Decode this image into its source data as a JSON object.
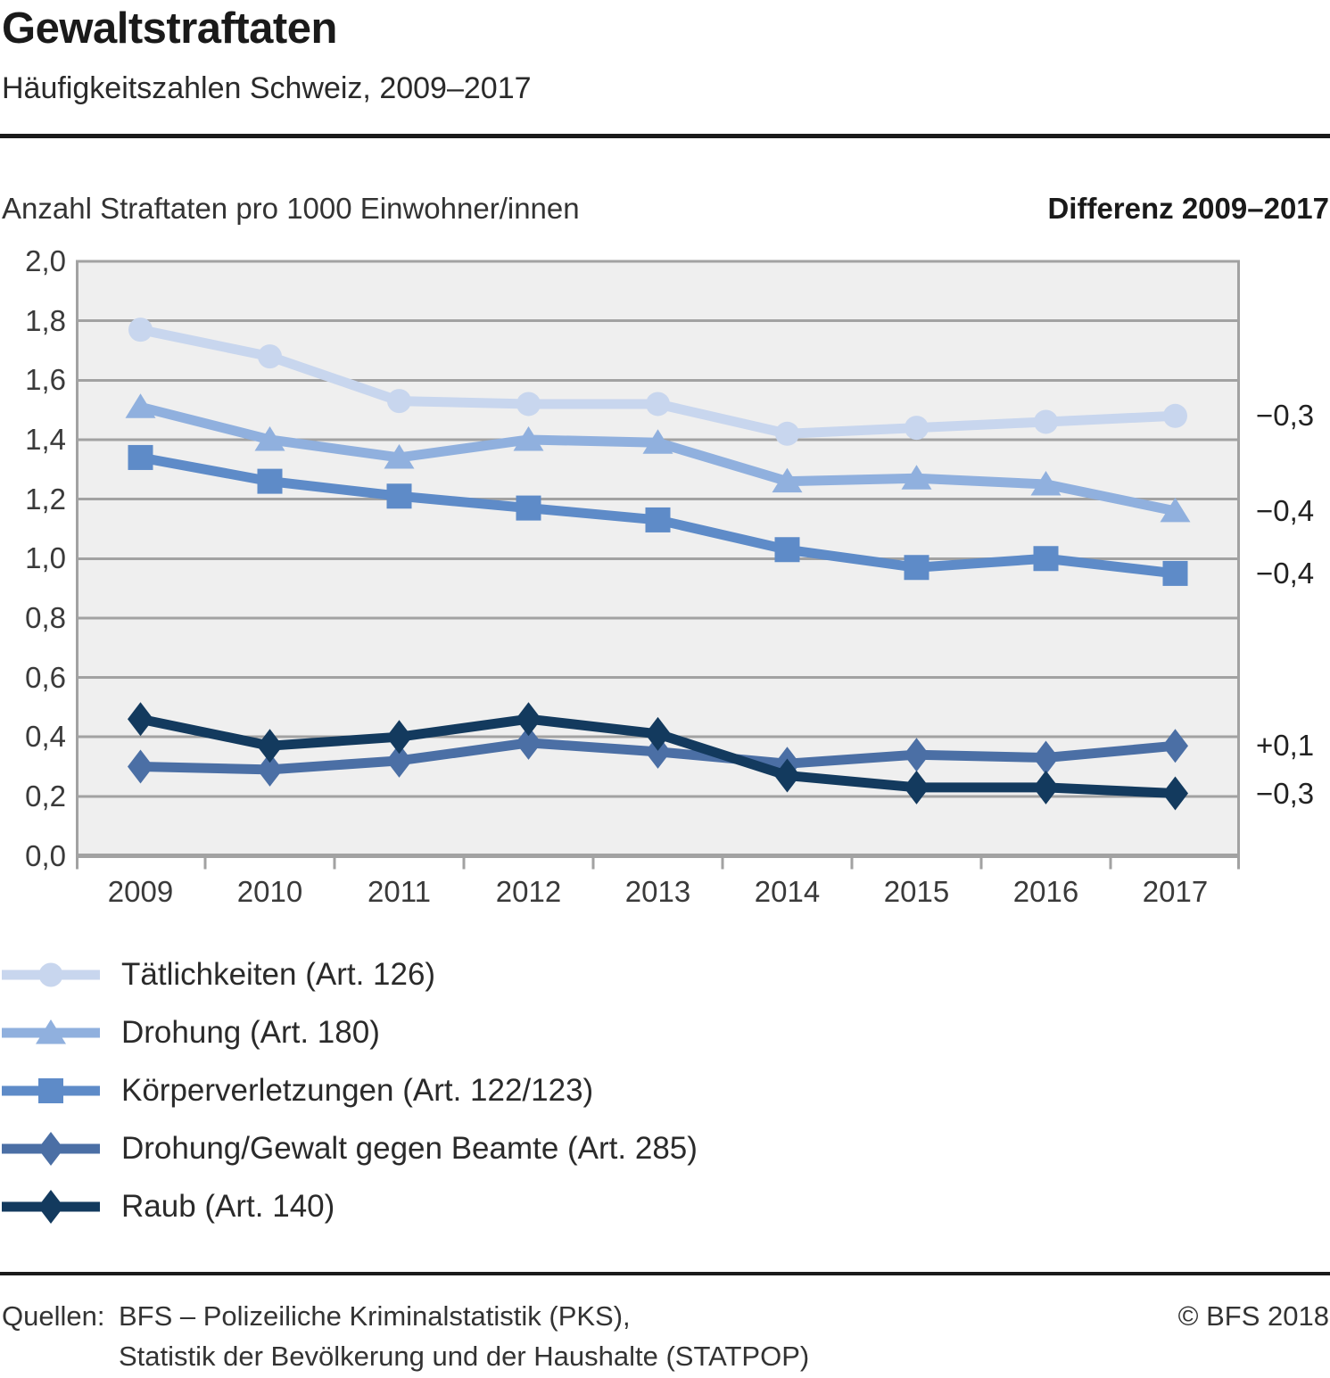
{
  "header": {
    "title": "Gewaltstraftaten",
    "subtitle": "Häufigkeitszahlen Schweiz, 2009–2017"
  },
  "chart_header": {
    "left_label": "Anzahl Straftaten pro 1000 Einwohner/innen",
    "right_label": "Differenz 2009–2017"
  },
  "chart_data": {
    "type": "line",
    "title": "Gewaltstraftaten",
    "subtitle": "Häufigkeitszahlen Schweiz, 2009–2017",
    "ylabel": "Anzahl Straftaten pro 1000 Einwohner/innen",
    "x": [
      2009,
      2010,
      2011,
      2012,
      2013,
      2014,
      2015,
      2016,
      2017
    ],
    "x_tick_labels": [
      "2009",
      "2010",
      "2011",
      "2012",
      "2013",
      "2014",
      "2015",
      "2016",
      "2017"
    ],
    "ylim": [
      0.0,
      2.0
    ],
    "y_tick_step": 0.2,
    "y_tick_labels": [
      "0,0",
      "0,2",
      "0,4",
      "0,6",
      "0,8",
      "1,0",
      "1,2",
      "1,4",
      "1,6",
      "1,8",
      "2,0"
    ],
    "grid": true,
    "legend_position": "below-left",
    "plot_bg_color": "#efefef",
    "grid_color": "#a2a2a2",
    "series": [
      {
        "name": "Tätlichkeiten (Art. 126)",
        "marker": "circle",
        "color": "#c8d6ee",
        "values": [
          1.77,
          1.68,
          1.53,
          1.52,
          1.52,
          1.42,
          1.44,
          1.46,
          1.48
        ],
        "difference_label": "−0,3"
      },
      {
        "name": "Drohung (Art. 180)",
        "marker": "triangle",
        "color": "#90b0de",
        "values": [
          1.51,
          1.4,
          1.34,
          1.4,
          1.39,
          1.26,
          1.27,
          1.25,
          1.16
        ],
        "difference_label": "−0,4"
      },
      {
        "name": "Körperverletzungen (Art. 122/123)",
        "marker": "square",
        "color": "#5e8bc8",
        "values": [
          1.34,
          1.26,
          1.21,
          1.17,
          1.13,
          1.03,
          0.97,
          1.0,
          0.95
        ],
        "difference_label": "−0,4"
      },
      {
        "name": "Drohung/Gewalt gegen Beamte (Art. 285)",
        "marker": "diamond",
        "color": "#4b6fa5",
        "values": [
          0.3,
          0.29,
          0.32,
          0.38,
          0.35,
          0.31,
          0.34,
          0.33,
          0.37
        ],
        "difference_label": "+0,1"
      },
      {
        "name": "Raub (Art. 140)",
        "marker": "diamond",
        "color": "#133a5e",
        "values": [
          0.46,
          0.37,
          0.4,
          0.46,
          0.41,
          0.27,
          0.23,
          0.23,
          0.21
        ],
        "difference_label": "−0,3"
      }
    ]
  },
  "footer": {
    "sources_label": "Quellen:",
    "source_lines": [
      "BFS – Polizeiliche Kriminalstatistik (PKS),",
      "Statistik der Bevölkerung und der Haushalte (STATPOP)"
    ],
    "copyright": "© BFS 2018"
  }
}
